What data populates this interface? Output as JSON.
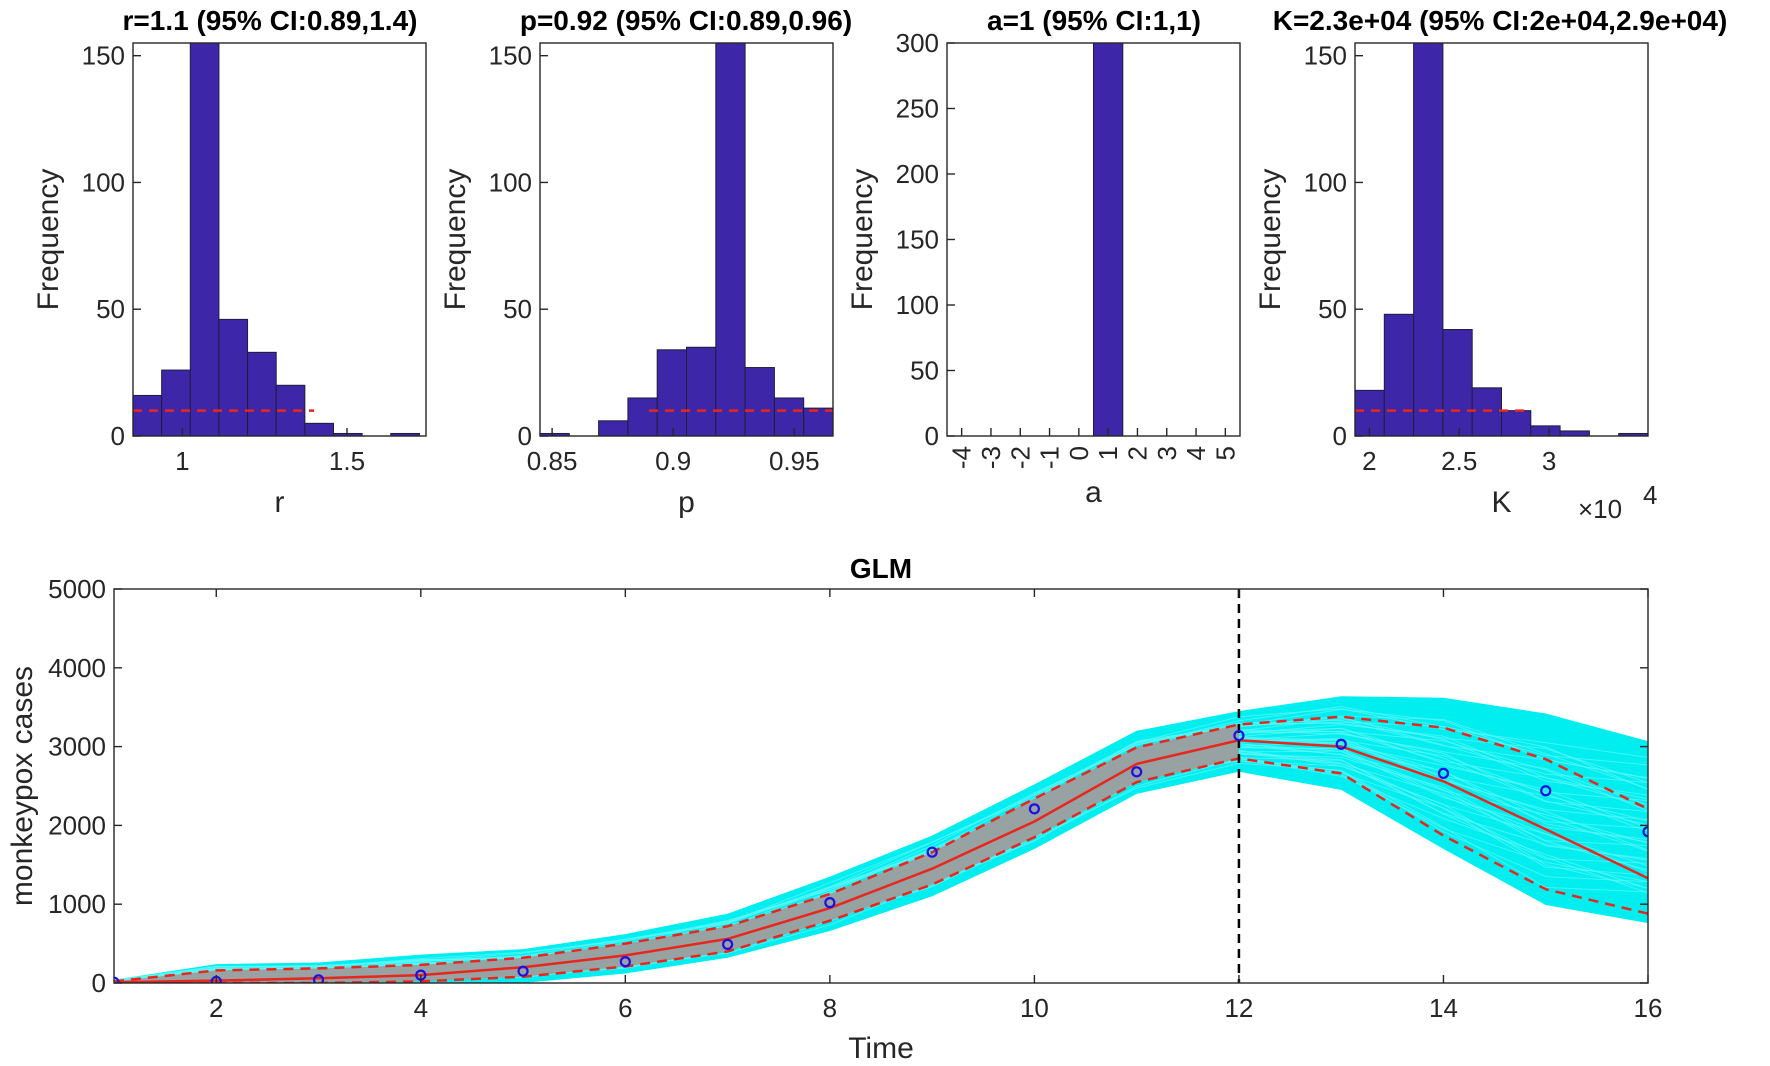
{
  "colors": {
    "bar": "#3d27a8",
    "bar_edge": "#1e1e3c",
    "dashed_ref": "#e8261e",
    "ensemble": "#00eef0",
    "ci_band": "#9d9d9d",
    "median": "#e8261e",
    "data_points": "#1a10e6",
    "divider": "#000000"
  },
  "chart_data": [
    {
      "type": "bar",
      "name": "hist-r",
      "title": "r=1.1 (95% CI:0.89,1.4)",
      "xlabel": "r",
      "ylabel": "Frequency",
      "xlim": [
        0.85,
        1.74
      ],
      "ylim": [
        0,
        155
      ],
      "xticks": [
        1,
        1.5
      ],
      "xtick_labels": [
        "1",
        "1.5"
      ],
      "yticks": [
        0,
        50,
        100,
        150
      ],
      "bin_edges": [
        0.85,
        0.937,
        1.024,
        1.111,
        1.198,
        1.285,
        1.372,
        1.459,
        1.546,
        1.633,
        1.72
      ],
      "values": [
        16,
        26,
        155,
        46,
        33,
        20,
        5,
        1,
        0,
        1
      ],
      "ref_line": {
        "x": [
          0.85,
          1.4
        ],
        "y": 10
      }
    },
    {
      "type": "bar",
      "name": "hist-p",
      "title": "p=0.92 (95% CI:0.89,0.96)",
      "xlabel": "p",
      "ylabel": "Frequency",
      "xlim": [
        0.845,
        0.966
      ],
      "ylim": [
        0,
        155
      ],
      "xticks": [
        0.85,
        0.9,
        0.95
      ],
      "xtick_labels": [
        "0.85",
        "0.9",
        "0.95"
      ],
      "yticks": [
        0,
        50,
        100,
        150
      ],
      "bin_edges": [
        0.845,
        0.8571,
        0.8692,
        0.8813,
        0.8934,
        0.9055,
        0.9176,
        0.9297,
        0.9418,
        0.9539,
        0.966
      ],
      "values": [
        1,
        0,
        6,
        15,
        34,
        35,
        155,
        27,
        15,
        11
      ],
      "ref_line": {
        "x": [
          0.89,
          0.966
        ],
        "y": 10
      }
    },
    {
      "type": "bar",
      "name": "hist-a",
      "title": "a=1 (95% CI:1,1)",
      "xlabel": "a",
      "ylabel": "Frequency",
      "xlim": [
        -4.5,
        5.5
      ],
      "ylim": [
        0,
        300
      ],
      "xticks": [
        -4,
        -3,
        -2,
        -1,
        0,
        1,
        2,
        3,
        4,
        5
      ],
      "xtick_labels": [
        "-4",
        "-3",
        "-2",
        "-1",
        "0",
        "1",
        "2",
        "3",
        "4",
        "5"
      ],
      "xtick_rotate": true,
      "yticks": [
        0,
        50,
        100,
        150,
        200,
        250,
        300
      ],
      "bin_edges": [
        0.5,
        1.5
      ],
      "values": [
        300
      ]
    },
    {
      "type": "bar",
      "name": "hist-K",
      "title": "K=2.3e+04 (95% CI:2e+04,2.9e+04)",
      "xlabel": "K",
      "ylabel": "Frequency",
      "exponent_label": "×10",
      "exponent_power": "4",
      "xlim": [
        1.92,
        3.55
      ],
      "ylim": [
        0,
        155
      ],
      "xticks": [
        2,
        2.5,
        3
      ],
      "xtick_labels": [
        "2",
        "2.5",
        "3"
      ],
      "yticks": [
        0,
        50,
        100,
        150
      ],
      "bin_edges": [
        1.92,
        2.083,
        2.246,
        2.409,
        2.572,
        2.735,
        2.898,
        3.061,
        3.224,
        3.387,
        3.55
      ],
      "values": [
        18,
        48,
        155,
        42,
        19,
        10,
        4,
        2,
        0,
        1
      ],
      "ref_line": {
        "x": [
          1.92,
          2.9
        ],
        "y": 10
      }
    },
    {
      "type": "line",
      "name": "glm-forecast",
      "title": "GLM",
      "xlabel": "Time",
      "ylabel": "monkeypox cases",
      "xlim": [
        1,
        16
      ],
      "ylim": [
        0,
        5000
      ],
      "xticks": [
        2,
        4,
        6,
        8,
        10,
        12,
        14,
        16
      ],
      "yticks": [
        0,
        1000,
        2000,
        3000,
        4000,
        5000
      ],
      "x": [
        1,
        2,
        3,
        4,
        5,
        6,
        7,
        8,
        9,
        10,
        11,
        12,
        13,
        14,
        15,
        16
      ],
      "median": [
        10,
        30,
        60,
        100,
        200,
        350,
        560,
        950,
        1450,
        2050,
        2780,
        3080,
        3000,
        2560,
        1950,
        1330
      ],
      "upper": [
        20,
        160,
        185,
        230,
        320,
        500,
        720,
        1130,
        1660,
        2340,
        2990,
        3280,
        3380,
        3240,
        2840,
        2210
      ],
      "lower": [
        0,
        0,
        0,
        20,
        80,
        210,
        400,
        790,
        1250,
        1850,
        2550,
        2850,
        2660,
        1870,
        1190,
        880
      ],
      "ensemble_upper": [
        40,
        240,
        260,
        360,
        430,
        620,
        880,
        1350,
        1870,
        2520,
        3200,
        3450,
        3640,
        3620,
        3420,
        3070
      ],
      "ensemble_lower": [
        0,
        0,
        0,
        0,
        0,
        120,
        320,
        660,
        1100,
        1700,
        2400,
        2680,
        2450,
        1700,
        990,
        760
      ],
      "observed": [
        10,
        20,
        40,
        100,
        150,
        270,
        490,
        1020,
        1660,
        2210,
        2680,
        3140,
        3030,
        2660,
        2440,
        1920
      ],
      "fit_end": 12
    }
  ]
}
